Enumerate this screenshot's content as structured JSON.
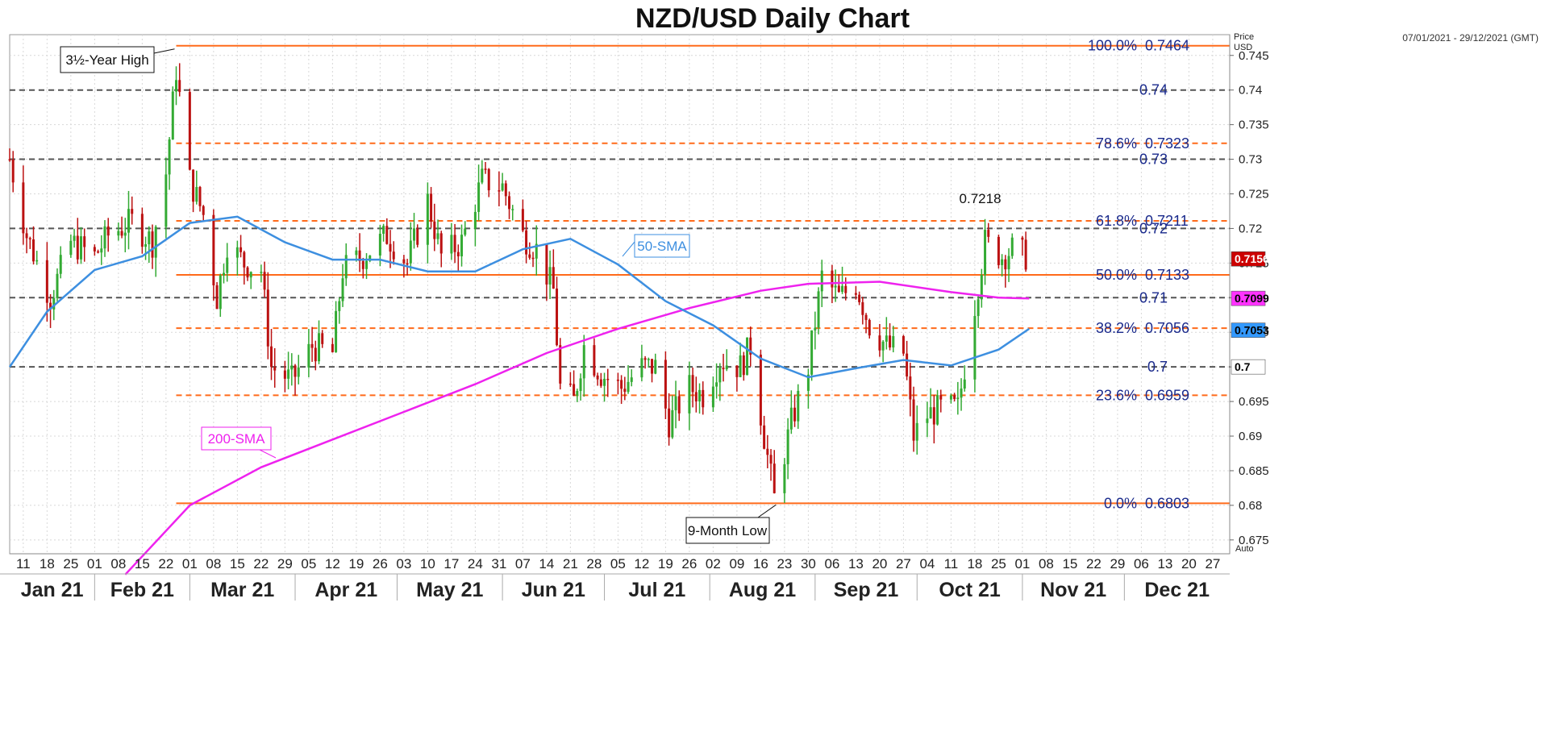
{
  "chart_data": {
    "type": "candlestick",
    "title": "NZD/USD Daily Chart",
    "date_range": "07/01/2021 - 29/12/2021 (GMT)",
    "y_axis_title": [
      "Price",
      "USD"
    ],
    "ylim": [
      0.673,
      0.748
    ],
    "y_ticks": [
      {
        "value": 0.745,
        "label": "0.745"
      },
      {
        "value": 0.74,
        "label": "0.74"
      },
      {
        "value": 0.735,
        "label": "0.735"
      },
      {
        "value": 0.73,
        "label": "0.73"
      },
      {
        "value": 0.725,
        "label": "0.725"
      },
      {
        "value": 0.72,
        "label": "0.72"
      },
      {
        "value": 0.715,
        "label": "0.715"
      },
      {
        "value": 0.71,
        "label": "0.71"
      },
      {
        "value": 0.705,
        "label": "0.705"
      },
      {
        "value": 0.7,
        "label": "0.7"
      },
      {
        "value": 0.695,
        "label": "0.695"
      },
      {
        "value": 0.69,
        "label": "0.69"
      },
      {
        "value": 0.685,
        "label": "0.685"
      },
      {
        "value": 0.68,
        "label": "0.68"
      },
      {
        "value": 0.675,
        "label": "0.675"
      }
    ],
    "x_date_start": "2021-01-07",
    "x_date_end": "2022-01-01",
    "x_ticks": [
      {
        "date": "2021-01-11",
        "label": "11"
      },
      {
        "date": "2021-01-18",
        "label": "18"
      },
      {
        "date": "2021-01-25",
        "label": "25"
      },
      {
        "date": "2021-02-01",
        "label": "01"
      },
      {
        "date": "2021-02-08",
        "label": "08"
      },
      {
        "date": "2021-02-15",
        "label": "15"
      },
      {
        "date": "2021-02-22",
        "label": "22"
      },
      {
        "date": "2021-03-01",
        "label": "01"
      },
      {
        "date": "2021-03-08",
        "label": "08"
      },
      {
        "date": "2021-03-15",
        "label": "15"
      },
      {
        "date": "2021-03-22",
        "label": "22"
      },
      {
        "date": "2021-03-29",
        "label": "29"
      },
      {
        "date": "2021-04-05",
        "label": "05"
      },
      {
        "date": "2021-04-12",
        "label": "12"
      },
      {
        "date": "2021-04-19",
        "label": "19"
      },
      {
        "date": "2021-04-26",
        "label": "26"
      },
      {
        "date": "2021-05-03",
        "label": "03"
      },
      {
        "date": "2021-05-10",
        "label": "10"
      },
      {
        "date": "2021-05-17",
        "label": "17"
      },
      {
        "date": "2021-05-24",
        "label": "24"
      },
      {
        "date": "2021-05-31",
        "label": "31"
      },
      {
        "date": "2021-06-07",
        "label": "07"
      },
      {
        "date": "2021-06-14",
        "label": "14"
      },
      {
        "date": "2021-06-21",
        "label": "21"
      },
      {
        "date": "2021-06-28",
        "label": "28"
      },
      {
        "date": "2021-07-05",
        "label": "05"
      },
      {
        "date": "2021-07-12",
        "label": "12"
      },
      {
        "date": "2021-07-19",
        "label": "19"
      },
      {
        "date": "2021-07-26",
        "label": "26"
      },
      {
        "date": "2021-08-02",
        "label": "02"
      },
      {
        "date": "2021-08-09",
        "label": "09"
      },
      {
        "date": "2021-08-16",
        "label": "16"
      },
      {
        "date": "2021-08-23",
        "label": "23"
      },
      {
        "date": "2021-08-30",
        "label": "30"
      },
      {
        "date": "2021-09-06",
        "label": "06"
      },
      {
        "date": "2021-09-13",
        "label": "13"
      },
      {
        "date": "2021-09-20",
        "label": "20"
      },
      {
        "date": "2021-09-27",
        "label": "27"
      },
      {
        "date": "2021-10-04",
        "label": "04"
      },
      {
        "date": "2021-10-11",
        "label": "11"
      },
      {
        "date": "2021-10-18",
        "label": "18"
      },
      {
        "date": "2021-10-25",
        "label": "25"
      },
      {
        "date": "2021-11-01",
        "label": "01"
      },
      {
        "date": "2021-11-08",
        "label": "08"
      },
      {
        "date": "2021-11-15",
        "label": "15"
      },
      {
        "date": "2021-11-22",
        "label": "22"
      },
      {
        "date": "2021-11-29",
        "label": "29"
      },
      {
        "date": "2021-12-06",
        "label": "06"
      },
      {
        "date": "2021-12-13",
        "label": "13"
      },
      {
        "date": "2021-12-20",
        "label": "20"
      },
      {
        "date": "2021-12-27",
        "label": "27"
      }
    ],
    "months": [
      {
        "label": "Jan 21",
        "start": "2021-01-07",
        "end": "2021-02-01"
      },
      {
        "label": "Feb 21",
        "start": "2021-02-01",
        "end": "2021-03-01"
      },
      {
        "label": "Mar 21",
        "start": "2021-03-01",
        "end": "2021-04-01"
      },
      {
        "label": "Apr 21",
        "start": "2021-04-01",
        "end": "2021-05-01"
      },
      {
        "label": "May 21",
        "start": "2021-05-01",
        "end": "2021-06-01"
      },
      {
        "label": "Jun 21",
        "start": "2021-06-01",
        "end": "2021-07-01"
      },
      {
        "label": "Jul 21",
        "start": "2021-07-01",
        "end": "2021-08-01"
      },
      {
        "label": "Aug 21",
        "start": "2021-08-01",
        "end": "2021-09-01"
      },
      {
        "label": "Sep 21",
        "start": "2021-09-01",
        "end": "2021-10-01"
      },
      {
        "label": "Oct 21",
        "start": "2021-10-01",
        "end": "2021-11-01"
      },
      {
        "label": "Nov 21",
        "start": "2021-11-01",
        "end": "2021-12-01"
      },
      {
        "label": "Dec 21",
        "start": "2021-12-01",
        "end": "2022-01-01"
      }
    ],
    "fib_levels": [
      {
        "label": "100.0%",
        "price_label": "0.7464",
        "value": 0.7464,
        "style": "solid"
      },
      {
        "label": "78.6%",
        "price_label": "0.7323",
        "value": 0.7323,
        "style": "dashed"
      },
      {
        "label": "61.8%",
        "price_label": "0.7211",
        "value": 0.7211,
        "style": "dashed"
      },
      {
        "label": "50.0%",
        "price_label": "0.7133",
        "value": 0.7133,
        "style": "solid"
      },
      {
        "label": "38.2%",
        "price_label": "0.7056",
        "value": 0.7056,
        "style": "dashed"
      },
      {
        "label": "23.6%",
        "price_label": "0.6959",
        "value": 0.6959,
        "style": "dashed"
      },
      {
        "label": "0.0%",
        "price_label": "0.6803",
        "value": 0.6803,
        "style": "solid"
      }
    ],
    "fib_start_date": "2021-02-25",
    "fib_end_date": "2021-12-31",
    "round_levels": [
      {
        "label": "0.74",
        "value": 0.74
      },
      {
        "label": "0.73",
        "value": 0.73
      },
      {
        "label": "0.72",
        "value": 0.72
      },
      {
        "label": "0.71",
        "value": 0.71
      },
      {
        "label": "0.7",
        "value": 0.7
      }
    ],
    "price_badges": [
      {
        "label": "0.7156",
        "value": 0.7156,
        "color": "#cc0000",
        "text_color": "#ffffff"
      },
      {
        "label": "0.7099",
        "value": 0.7099,
        "color": "#ff33ff",
        "text_color": "#000000"
      },
      {
        "label": "0.7053",
        "value": 0.7053,
        "color": "#3399ff",
        "text_color": "#000000"
      },
      {
        "label": "0.7",
        "value": 0.7,
        "color": "#ffffff",
        "text_color": "#000000"
      }
    ],
    "annotations": {
      "year_high": {
        "label": "3½-Year High",
        "date": "2021-02-25",
        "value": 0.7464
      },
      "month_low": {
        "label": "9-Month Low",
        "date": "2021-08-20",
        "value": 0.6803
      },
      "peak_label": {
        "label": "0.7218",
        "date": "2021-10-21",
        "value": 0.7218
      },
      "sma50_label": "50-SMA",
      "sma200_label": "200-SMA"
    },
    "price_anchors": [
      [
        "2021-01-07",
        0.73
      ],
      [
        "2021-01-12",
        0.719
      ],
      [
        "2021-01-19",
        0.71
      ],
      [
        "2021-01-25",
        0.718
      ],
      [
        "2021-02-01",
        0.716
      ],
      [
        "2021-02-05",
        0.719
      ],
      [
        "2021-02-12",
        0.721
      ],
      [
        "2021-02-18",
        0.718
      ],
      [
        "2021-02-22",
        0.728
      ],
      [
        "2021-02-25",
        0.743
      ],
      [
        "2021-03-01",
        0.727
      ],
      [
        "2021-03-05",
        0.722
      ],
      [
        "2021-03-09",
        0.71
      ],
      [
        "2021-03-12",
        0.718
      ],
      [
        "2021-03-17",
        0.715
      ],
      [
        "2021-03-22",
        0.714
      ],
      [
        "2021-03-25",
        0.7
      ],
      [
        "2021-03-31",
        0.698
      ],
      [
        "2021-04-06",
        0.703
      ],
      [
        "2021-04-12",
        0.702
      ],
      [
        "2021-04-15",
        0.714
      ],
      [
        "2021-04-21",
        0.716
      ],
      [
        "2021-04-28",
        0.719
      ],
      [
        "2021-05-04",
        0.715
      ],
      [
        "2021-05-10",
        0.724
      ],
      [
        "2021-05-14",
        0.716
      ],
      [
        "2021-05-20",
        0.718
      ],
      [
        "2021-05-26",
        0.727
      ],
      [
        "2021-06-01",
        0.726
      ],
      [
        "2021-06-07",
        0.719
      ],
      [
        "2021-06-11",
        0.717
      ],
      [
        "2021-06-16",
        0.711
      ],
      [
        "2021-06-18",
        0.697
      ],
      [
        "2021-06-22",
        0.695
      ],
      [
        "2021-06-25",
        0.703
      ],
      [
        "2021-06-30",
        0.699
      ],
      [
        "2021-07-06",
        0.697
      ],
      [
        "2021-07-12",
        0.7
      ],
      [
        "2021-07-16",
        0.7
      ],
      [
        "2021-07-20",
        0.692
      ],
      [
        "2021-07-26",
        0.697
      ],
      [
        "2021-07-30",
        0.696
      ],
      [
        "2021-08-04",
        0.701
      ],
      [
        "2021-08-10",
        0.7
      ],
      [
        "2021-08-13",
        0.703
      ],
      [
        "2021-08-17",
        0.69
      ],
      [
        "2021-08-20",
        0.681
      ],
      [
        "2021-08-25",
        0.692
      ],
      [
        "2021-08-30",
        0.7
      ],
      [
        "2021-09-03",
        0.713
      ],
      [
        "2021-09-08",
        0.71
      ],
      [
        "2021-09-13",
        0.712
      ],
      [
        "2021-09-17",
        0.706
      ],
      [
        "2021-09-22",
        0.703
      ],
      [
        "2021-09-27",
        0.702
      ],
      [
        "2021-09-30",
        0.69
      ],
      [
        "2021-10-04",
        0.693
      ],
      [
        "2021-10-08",
        0.694
      ],
      [
        "2021-10-13",
        0.694
      ],
      [
        "2021-10-18",
        0.709
      ],
      [
        "2021-10-21",
        0.718
      ],
      [
        "2021-10-26",
        0.716
      ],
      [
        "2021-10-29",
        0.717
      ],
      [
        "2021-11-02",
        0.716
      ]
    ],
    "sma50_anchors": [
      [
        "2021-01-07",
        0.7
      ],
      [
        "2021-01-18",
        0.708
      ],
      [
        "2021-02-01",
        0.714
      ],
      [
        "2021-02-15",
        0.716
      ],
      [
        "2021-03-01",
        0.7208
      ],
      [
        "2021-03-15",
        0.7217
      ],
      [
        "2021-03-29",
        0.718
      ],
      [
        "2021-04-12",
        0.7155
      ],
      [
        "2021-04-26",
        0.7155
      ],
      [
        "2021-05-10",
        0.7138
      ],
      [
        "2021-05-24",
        0.7138
      ],
      [
        "2021-06-07",
        0.717
      ],
      [
        "2021-06-21",
        0.7185
      ],
      [
        "2021-07-05",
        0.7148
      ],
      [
        "2021-07-19",
        0.7095
      ],
      [
        "2021-08-02",
        0.706
      ],
      [
        "2021-08-16",
        0.7012
      ],
      [
        "2021-08-30",
        0.6985
      ],
      [
        "2021-09-13",
        0.6998
      ],
      [
        "2021-09-27",
        0.701
      ],
      [
        "2021-10-11",
        0.7002
      ],
      [
        "2021-10-25",
        0.7025
      ],
      [
        "2021-11-03",
        0.7055
      ]
    ],
    "sma200_anchors": [
      [
        "2021-02-10",
        0.67
      ],
      [
        "2021-03-01",
        0.68
      ],
      [
        "2021-03-22",
        0.6855
      ],
      [
        "2021-04-12",
        0.6895
      ],
      [
        "2021-05-03",
        0.6935
      ],
      [
        "2021-05-24",
        0.6975
      ],
      [
        "2021-06-14",
        0.702
      ],
      [
        "2021-07-05",
        0.7055
      ],
      [
        "2021-07-26",
        0.7085
      ],
      [
        "2021-08-16",
        0.711
      ],
      [
        "2021-08-30",
        0.712
      ],
      [
        "2021-09-20",
        0.7123
      ],
      [
        "2021-10-11",
        0.7108
      ],
      [
        "2021-10-25",
        0.71
      ],
      [
        "2021-11-03",
        0.7099
      ]
    ],
    "colors": {
      "bull": "#33aa33",
      "bear": "#bb1111",
      "sma50": "#3d8fe0",
      "sma200": "#ee22ee",
      "fib": "#ff6a1a",
      "round_level": "#555555",
      "fib_text": "#1a2a8c"
    }
  }
}
